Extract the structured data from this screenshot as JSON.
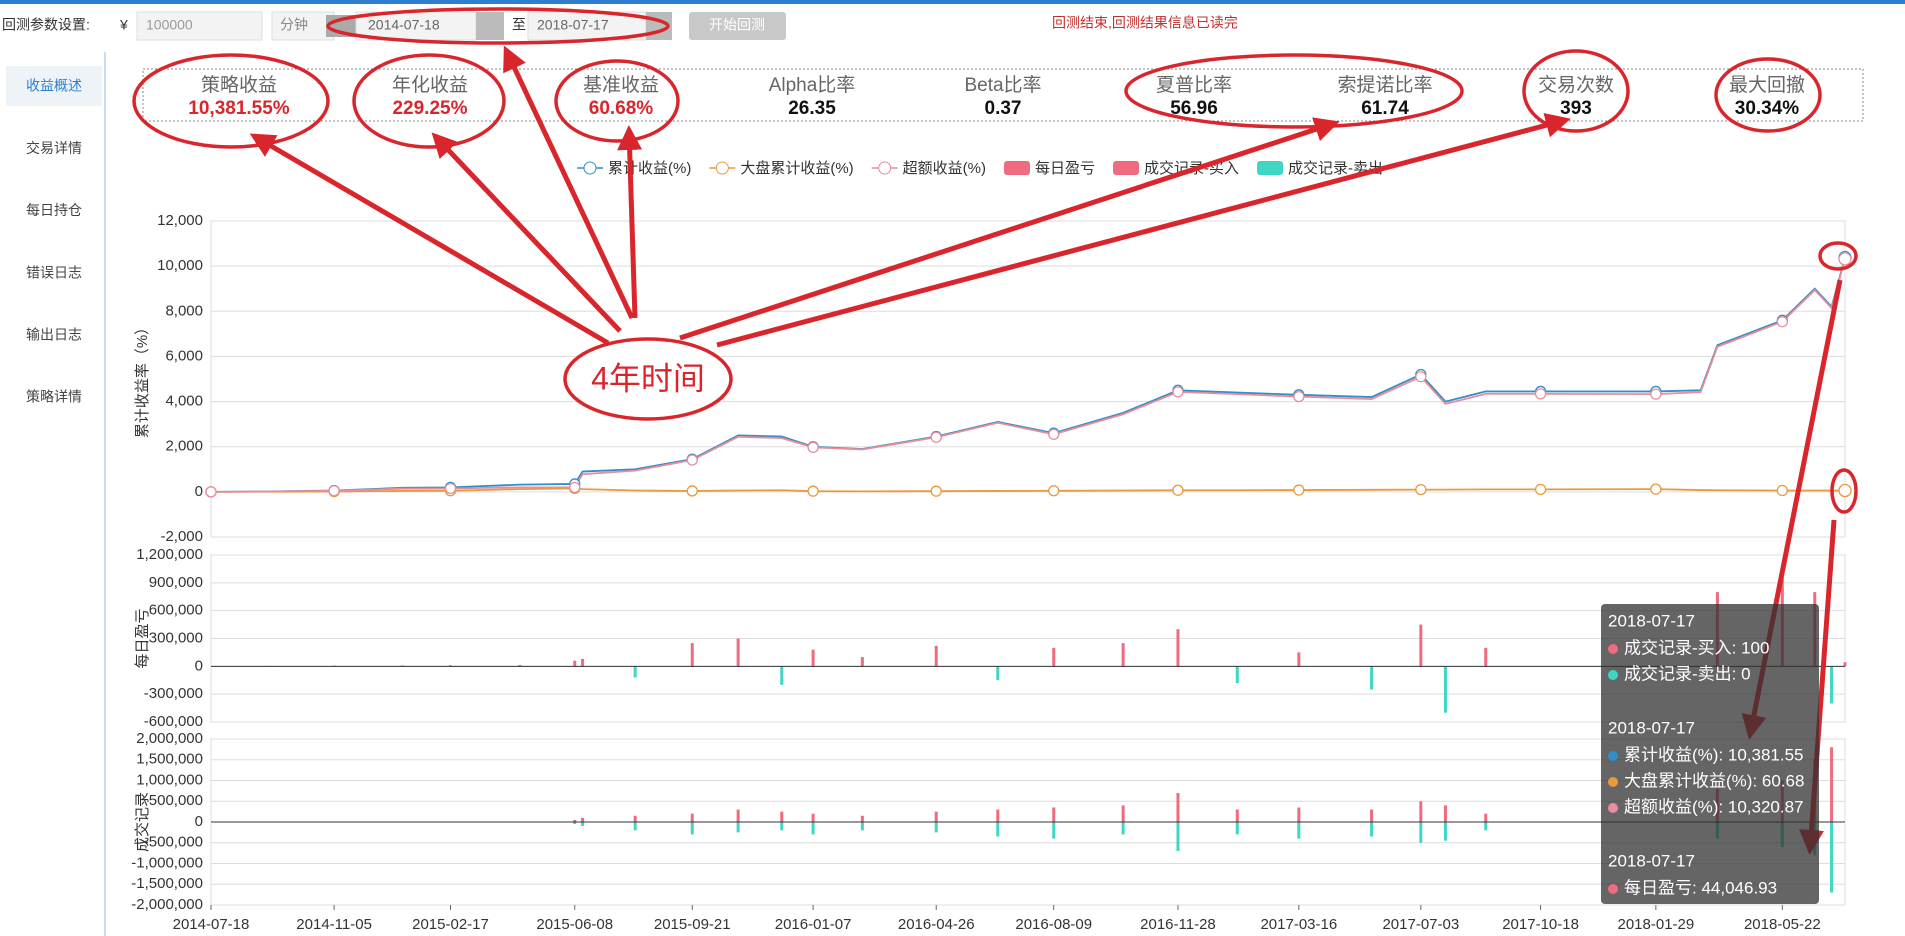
{
  "toolbar": {
    "label": "回测参数设置:",
    "currency": "¥",
    "capital": "100000",
    "period": "分钟",
    "start": "2014-07-18",
    "to": "至",
    "end": "2018-07-17",
    "button": "开始回测",
    "status": "回测结束,回测结果信息已读完"
  },
  "sidebar": {
    "items": [
      "收益概述",
      "交易详情",
      "每日持仓",
      "错误日志",
      "输出日志",
      "策略详情"
    ]
  },
  "metrics": [
    {
      "label": "策略收益",
      "value": "10,381.55%",
      "color": "#d9262c"
    },
    {
      "label": "年化收益",
      "value": "229.25%",
      "color": "#d9262c"
    },
    {
      "label": "基准收益",
      "value": "60.68%",
      "color": "#d9262c"
    },
    {
      "label": "Alpha比率",
      "value": "26.35",
      "color": "#111"
    },
    {
      "label": "Beta比率",
      "value": "0.37",
      "color": "#111"
    },
    {
      "label": "夏普比率",
      "value": "56.96",
      "color": "#111"
    },
    {
      "label": "索提诺比率",
      "value": "61.74",
      "color": "#111"
    },
    {
      "label": "交易次数",
      "value": "393",
      "color": "#111"
    },
    {
      "label": "最大回撤",
      "value": "30.34%",
      "color": "#111"
    }
  ],
  "annotation": "4年时间",
  "tooltip": [
    {
      "date": "2018-07-17",
      "items": [
        {
          "text": "成交记录-买入: 100",
          "color": "#ef6b7f"
        },
        {
          "text": "成交记录-卖出: 0",
          "color": "#3fd7c4"
        }
      ]
    },
    {
      "date": "2018-07-17",
      "items": [
        {
          "text": "累计收益(%): 10,381.55",
          "color": "#2f8fc9"
        },
        {
          "text": "大盘累计收益(%): 60.68",
          "color": "#e89a3c"
        },
        {
          "text": "超额收益(%): 10,320.87",
          "color": "#e88d9b"
        }
      ]
    },
    {
      "date": "2018-07-17",
      "items": [
        {
          "text": "每日盈亏: 44,046.93",
          "color": "#ef6b7f"
        }
      ]
    }
  ],
  "chart_data": [
    {
      "type": "line",
      "ylabel": "累计收益率（%）",
      "xlim": [
        "2014-07-18",
        "2018-07-17"
      ],
      "ylim": [
        -2000,
        12000
      ],
      "yticks": [
        {
          "value": -2000,
          "label": "-2,000"
        },
        0,
        {
          "value": 2000,
          "label": "2,000"
        },
        {
          "value": 4000,
          "label": "4,000"
        },
        {
          "value": 6000,
          "label": "6,000"
        },
        {
          "value": 8000,
          "label": "8,000"
        },
        {
          "value": 10000,
          "label": "10,000"
        },
        {
          "value": 12000,
          "label": "12,000"
        }
      ],
      "x": [
        "2014-07-18",
        "2014-09-10",
        "2014-11-05",
        "2015-01-05",
        "2015-02-17",
        "2015-04-20",
        "2015-06-08",
        "2015-06-15",
        "2015-08-01",
        "2015-09-21",
        "2015-11-01",
        "2015-12-10",
        "2016-01-07",
        "2016-02-20",
        "2016-04-26",
        "2016-06-20",
        "2016-08-09",
        "2016-10-10",
        "2016-11-28",
        "2017-01-20",
        "2017-03-16",
        "2017-05-20",
        "2017-07-03",
        "2017-07-25",
        "2017-08-30",
        "2017-10-18",
        "2018-01-29",
        "2018-03-10",
        "2018-03-25",
        "2018-05-22",
        "2018-06-20",
        "2018-07-05",
        "2018-07-17"
      ],
      "series": [
        {
          "name": "累计收益(%)",
          "color": "#2f8fc9",
          "values": [
            0,
            20,
            60,
            180,
            200,
            320,
            350,
            900,
            1000,
            1450,
            2500,
            2450,
            2000,
            1900,
            2450,
            3100,
            2600,
            3500,
            4500,
            4400,
            4300,
            4200,
            5200,
            4000,
            4450,
            4450,
            4450,
            4500,
            6500,
            7600,
            9000,
            8200,
            10381.55
          ]
        },
        {
          "name": "大盘累计收益(%)",
          "color": "#e89a3c",
          "values": [
            0,
            5,
            10,
            40,
            50,
            120,
            150,
            120,
            60,
            40,
            60,
            70,
            30,
            20,
            30,
            40,
            50,
            60,
            70,
            70,
            80,
            90,
            100,
            100,
            110,
            110,
            120,
            80,
            70,
            60,
            60,
            60,
            60.68
          ]
        },
        {
          "name": "超额收益(%)",
          "color": "#e88d9b",
          "values": [
            0,
            15,
            50,
            140,
            150,
            200,
            200,
            780,
            940,
            1410,
            2440,
            2380,
            1970,
            1880,
            2420,
            3060,
            2550,
            3440,
            4430,
            4330,
            4220,
            4110,
            5100,
            3900,
            4340,
            4340,
            4330,
            4420,
            6430,
            7540,
            8940,
            8140,
            10320.87
          ]
        }
      ]
    },
    {
      "type": "bar",
      "ylabel": "每日盈亏",
      "xlim": [
        "2014-07-18",
        "2018-07-17"
      ],
      "ylim": [
        -600000,
        1200000
      ],
      "yticks": [
        {
          "value": -600000,
          "label": "-600,000"
        },
        {
          "value": -300000,
          "label": "-300,000"
        },
        0,
        {
          "value": 300000,
          "label": "300,000"
        },
        {
          "value": 600000,
          "label": "600,000"
        },
        {
          "value": 900000,
          "label": "900,000"
        },
        {
          "value": 1200000,
          "label": "1,200,000"
        }
      ],
      "x": [
        "2014-07-18",
        "2014-09-10",
        "2014-11-05",
        "2015-01-05",
        "2015-02-17",
        "2015-04-20",
        "2015-06-08",
        "2015-06-15",
        "2015-08-01",
        "2015-09-21",
        "2015-11-01",
        "2015-12-10",
        "2016-01-07",
        "2016-02-20",
        "2016-04-26",
        "2016-06-20",
        "2016-08-09",
        "2016-10-10",
        "2016-11-28",
        "2017-01-20",
        "2017-03-16",
        "2017-05-20",
        "2017-07-03",
        "2017-07-25",
        "2017-08-30",
        "2017-10-18",
        "2018-01-29",
        "2018-03-10",
        "2018-03-25",
        "2018-05-22",
        "2018-06-20",
        "2018-07-05",
        "2018-07-17"
      ],
      "series": [
        {
          "name": "每日盈亏",
          "color": "#ef6b7f",
          "negative_color": "#3fd7c4",
          "values": [
            0,
            5000,
            8000,
            10000,
            12000,
            15000,
            60000,
            80000,
            -120000,
            250000,
            300000,
            -200000,
            180000,
            100000,
            220000,
            -150000,
            200000,
            250000,
            400000,
            -180000,
            150000,
            -250000,
            450000,
            -500000,
            200000,
            0,
            0,
            0,
            800000,
            950000,
            800000,
            -400000,
            44046.93
          ]
        }
      ]
    },
    {
      "type": "bar",
      "ylabel": "成交记录",
      "xlim": [
        "2014-07-18",
        "2018-07-17"
      ],
      "ylim": [
        -2000000,
        2000000
      ],
      "yticks": [
        {
          "value": -2000000,
          "label": "-2,000,000"
        },
        {
          "value": -1500000,
          "label": "-1,500,000"
        },
        {
          "value": -1000000,
          "label": "-1,000,000"
        },
        {
          "value": -500000,
          "label": "-500,000"
        },
        0,
        {
          "value": 500000,
          "label": "500,000"
        },
        {
          "value": 1000000,
          "label": "1,000,000"
        },
        {
          "value": 1500000,
          "label": "1,500,000"
        },
        {
          "value": 2000000,
          "label": "2,000,000"
        }
      ],
      "xticks": [
        "2014-07-18",
        "2014-11-05",
        "2015-02-17",
        "2015-06-08",
        "2015-09-21",
        "2016-01-07",
        "2016-04-26",
        "2016-08-09",
        "2016-11-28",
        "2017-03-16",
        "2017-07-03",
        "2017-10-18",
        "2018-01-29",
        "2018-05-22"
      ],
      "x": [
        "2014-07-18",
        "2014-09-10",
        "2014-11-05",
        "2015-01-05",
        "2015-02-17",
        "2015-04-20",
        "2015-06-08",
        "2015-06-15",
        "2015-08-01",
        "2015-09-21",
        "2015-11-01",
        "2015-12-10",
        "2016-01-07",
        "2016-02-20",
        "2016-04-26",
        "2016-06-20",
        "2016-08-09",
        "2016-10-10",
        "2016-11-28",
        "2017-01-20",
        "2017-03-16",
        "2017-05-20",
        "2017-07-03",
        "2017-07-25",
        "2017-08-30",
        "2017-10-18",
        "2018-01-29",
        "2018-03-10",
        "2018-03-25",
        "2018-05-22",
        "2018-06-20",
        "2018-07-05",
        "2018-07-17"
      ],
      "series": [
        {
          "name": "成交记录-买入",
          "color": "#ef6b7f",
          "values": [
            0,
            0,
            0,
            0,
            0,
            0,
            50000,
            100000,
            150000,
            200000,
            300000,
            250000,
            200000,
            150000,
            250000,
            300000,
            350000,
            400000,
            700000,
            300000,
            350000,
            300000,
            500000,
            400000,
            200000,
            0,
            0,
            0,
            800000,
            1000000,
            1500000,
            1800000,
            100
          ]
        },
        {
          "name": "成交记录-卖出",
          "color": "#3fd7c4",
          "values": [
            0,
            0,
            0,
            0,
            0,
            0,
            -50000,
            -100000,
            -200000,
            -300000,
            -250000,
            -200000,
            -300000,
            -200000,
            -250000,
            -350000,
            -400000,
            -300000,
            -700000,
            -300000,
            -400000,
            -350000,
            -500000,
            -450000,
            -200000,
            0,
            0,
            0,
            -400000,
            -600000,
            -800000,
            -1700000,
            0
          ]
        }
      ]
    }
  ]
}
